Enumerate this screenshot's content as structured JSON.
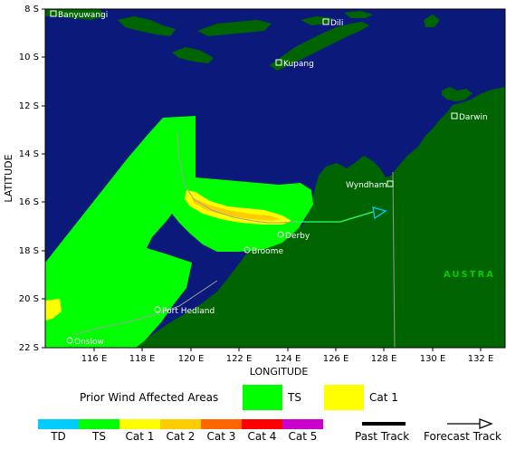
{
  "map": {
    "colors": {
      "ocean": "#0b1a7a",
      "land": "#006400",
      "ts_zone": "#00ff00",
      "cat1_zone": "#ffff00",
      "border": "#888888",
      "place_text": "#ffffff"
    },
    "lat_labels": [
      "8 S",
      "10 S",
      "12 S",
      "14 S",
      "16 S",
      "18 S",
      "20 S",
      "22 S"
    ],
    "lon_labels": [
      "116 E",
      "118 E",
      "120 E",
      "122 E",
      "124 E",
      "126 E",
      "128 E",
      "130 E",
      "132 E"
    ],
    "axis_x_title": "LONGITUDE",
    "axis_y_title": "LATITUDE",
    "places": {
      "banyuwangi": "Banyuwangi",
      "dili": "Dili",
      "kupang": "Kupang",
      "darwin": "Darwin",
      "wyndham": "Wyndham",
      "derby": "Derby",
      "broome": "Broome",
      "port_hedland": "Port Hedland",
      "onslow": "Onslow"
    },
    "region_label": "AUSTRA"
  },
  "legend": {
    "prior_title": "Prior Wind Affected Areas",
    "prior_ts": "TS",
    "prior_cat1": "Cat 1",
    "scale": [
      {
        "label": "TD",
        "color": "#00ccff"
      },
      {
        "label": "TS",
        "color": "#00ff00"
      },
      {
        "label": "Cat 1",
        "color": "#ffff00"
      },
      {
        "label": "Cat 2",
        "color": "#ffcc00"
      },
      {
        "label": "Cat 3",
        "color": "#ff6600"
      },
      {
        "label": "Cat 4",
        "color": "#ff0000"
      },
      {
        "label": "Cat 5",
        "color": "#cc00cc"
      }
    ],
    "past_track": "Past Track",
    "forecast_track": "Forecast Track"
  }
}
